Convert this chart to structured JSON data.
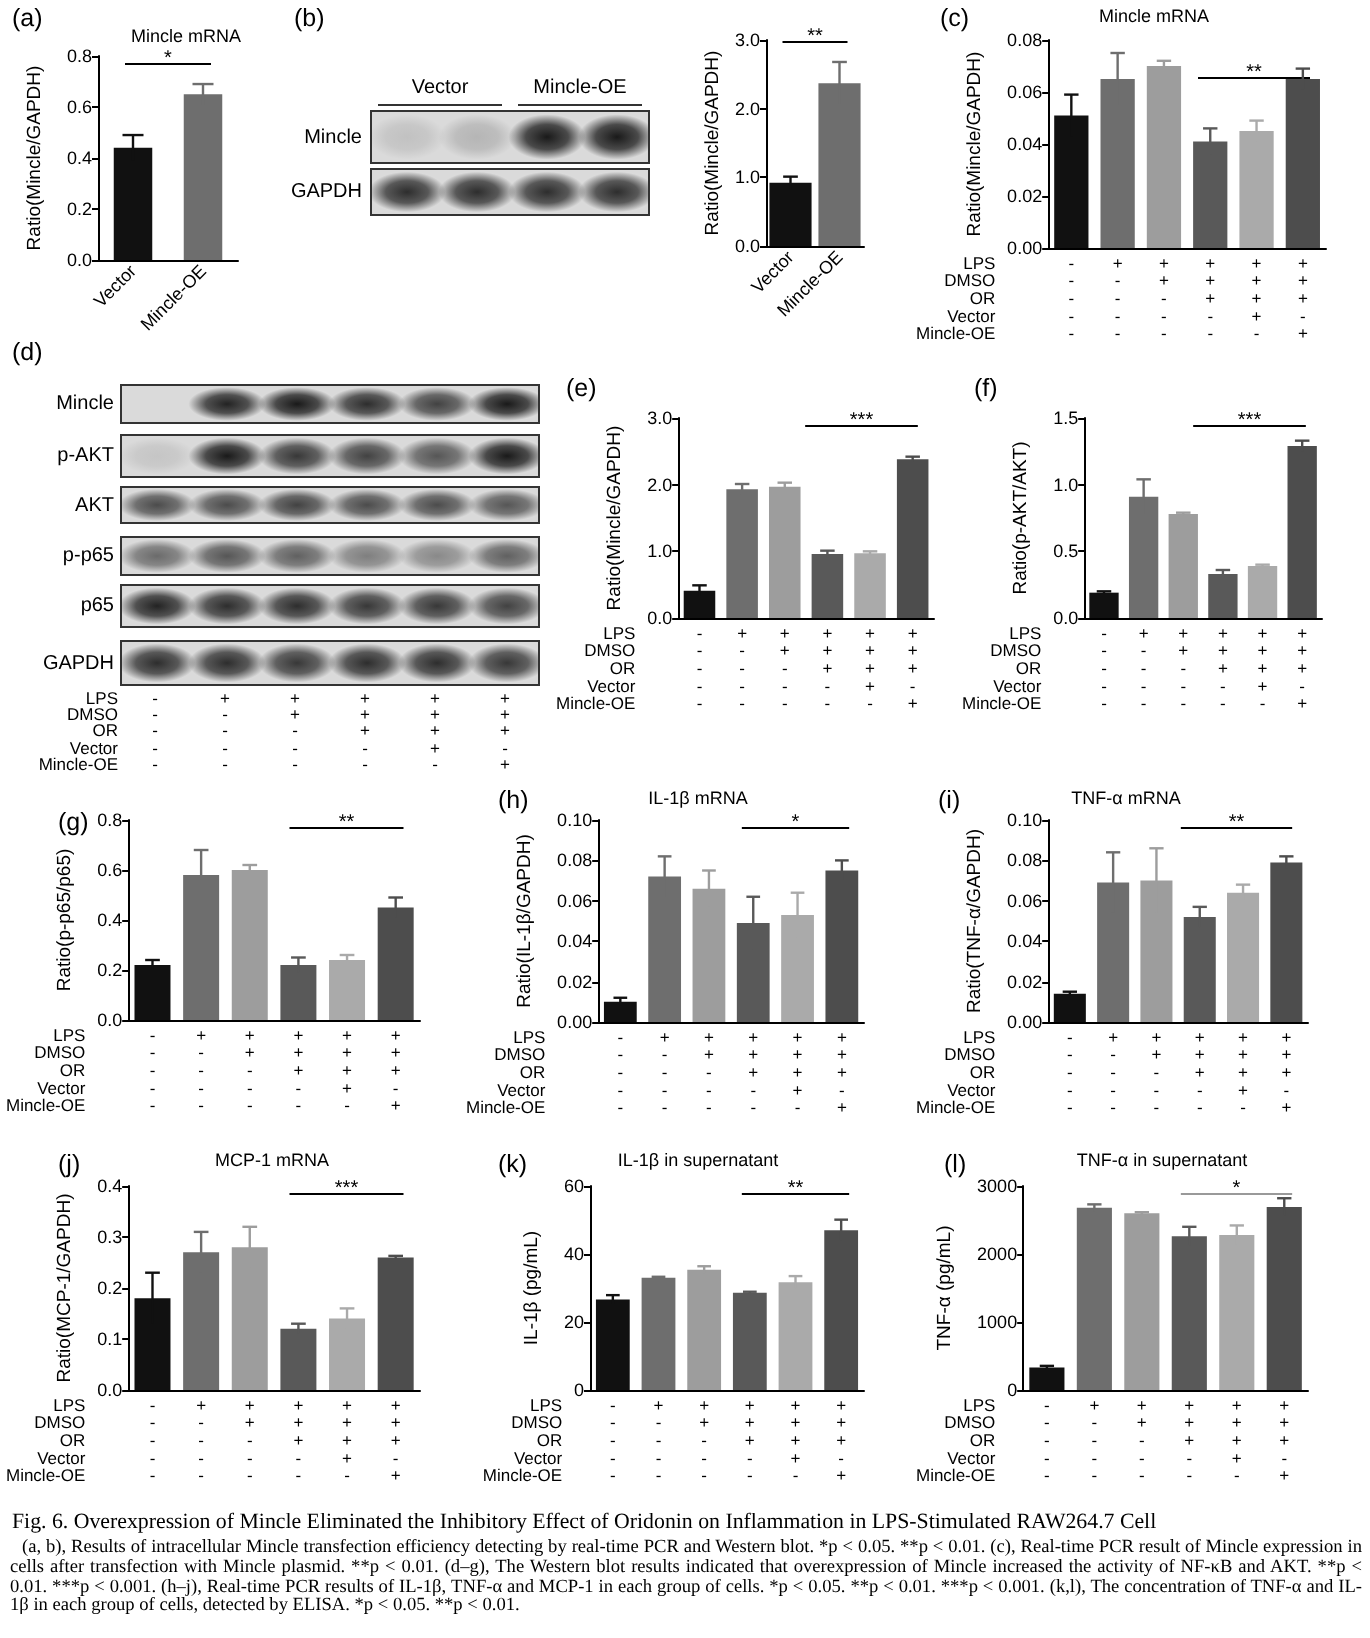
{
  "chart_data": [
    {
      "type": "bar",
      "title": "(a)",
      "subtitle": "Mincle mRNA",
      "ylabel": "Ratio(Mincle/GAPDH)",
      "categories": [
        "Vector",
        "Mincle-OE"
      ],
      "values": [
        0.44,
        0.65
      ],
      "errors": [
        0.05,
        0.04
      ],
      "colors": [
        "#111111",
        "#6e6e6e"
      ],
      "ylim": [
        0,
        0.8
      ],
      "yticks": [
        {
          "value": 0,
          "label": "0.0"
        },
        0.2,
        0.4,
        0.6,
        0.8
      ],
      "annotations": [
        "*"
      ]
    },
    {
      "type": "other",
      "title": "(b)",
      "categories": [
        "Vector",
        "Mincle-OE"
      ],
      "annotations": [
        "Mincle",
        "GAPDH"
      ]
    },
    {
      "type": "bar",
      "ylabel": "Ratio(Mincle/GAPDH)",
      "categories": [
        "Vector",
        "Mincle-OE"
      ],
      "values": [
        0.92,
        2.37
      ],
      "errors": [
        0.09,
        0.31
      ],
      "colors": [
        "#111111",
        "#6e6e6e"
      ],
      "ylim": [
        0,
        3
      ],
      "yticks": [
        {
          "value": 0,
          "label": "0.0"
        },
        {
          "value": 1,
          "label": "1.0"
        },
        {
          "value": 2,
          "label": "2.0"
        },
        {
          "value": 3,
          "label": "3.0"
        }
      ],
      "annotations": [
        "**"
      ]
    },
    {
      "type": "bar",
      "title": "(c)",
      "subtitle": "Mincle mRNA",
      "ylabel": "Ratio(Mincle/GAPDH)",
      "xlabel": "LPS\nDMSO\nOR\nVector\nMincle-OE",
      "categories": [
        "-\n-\n-\n-\n-",
        "+\n-\n-\n-\n-",
        "+\n+\n-\n-\n-",
        "+\n+\n+\n-\n-",
        "+\n+\n+\n+\n-",
        "+\n+\n+\n-\n+"
      ],
      "values": [
        0.051,
        0.065,
        0.07,
        0.041,
        0.045,
        0.065
      ],
      "errors": [
        0.008,
        0.01,
        0.002,
        0.005,
        0.004,
        0.004
      ],
      "colors": [
        "#111111",
        "#6e6e6e",
        "#9d9d9d",
        "#595959",
        "#aaaaaa",
        "#4d4d4d"
      ],
      "ylim": [
        0,
        0.08
      ],
      "yticks": [
        {
          "value": 0,
          "label": "0.00"
        },
        0.02,
        0.04,
        0.06,
        0.08
      ],
      "annotations": [
        "**"
      ]
    },
    {
      "type": "other",
      "title": "(d)",
      "xlabel": "LPS\nDMSO\nOR\nVector\nMincle-OE",
      "categories": [
        "-\n-\n-\n-\n-",
        "+\n-\n-\n-\n-",
        "+\n+\n-\n-\n-",
        "+\n+\n+\n-\n-",
        "+\n+\n+\n+\n-",
        "+\n+\n+\n-\n+"
      ],
      "annotations": [
        "Mincle",
        "p-AKT",
        "AKT",
        "p-p65",
        "p65",
        "GAPDH"
      ]
    },
    {
      "type": "bar",
      "title": "(e)",
      "ylabel": "Ratio(Mincle/GAPDH)",
      "xlabel": "LPS\nDMSO\nOR\nVector\nMincle-OE",
      "categories": [
        "-\n-\n-\n-\n-",
        "+\n-\n-\n-\n-",
        "+\n+\n-\n-\n-",
        "+\n+\n+\n-\n-",
        "+\n+\n+\n+\n-",
        "+\n+\n+\n-\n+"
      ],
      "values": [
        0.41,
        1.93,
        1.97,
        0.96,
        0.97,
        2.38
      ],
      "errors": [
        0.08,
        0.08,
        0.06,
        0.05,
        0.03,
        0.04
      ],
      "colors": [
        "#111111",
        "#6e6e6e",
        "#9d9d9d",
        "#595959",
        "#aaaaaa",
        "#4d4d4d"
      ],
      "ylim": [
        0,
        3
      ],
      "yticks": [
        {
          "value": 0,
          "label": "0.0"
        },
        {
          "value": 1,
          "label": "1.0"
        },
        {
          "value": 2,
          "label": "2.0"
        },
        {
          "value": 3,
          "label": "3.0"
        }
      ],
      "annotations": [
        "***"
      ]
    },
    {
      "type": "bar",
      "title": "(f)",
      "ylabel": "Ratio(p-AKT/AKT)",
      "xlabel": "LPS\nDMSO\nOR\nVector\nMincle-OE",
      "categories": [
        "-\n-\n-\n-\n-",
        "+\n-\n-\n-\n-",
        "+\n+\n-\n-\n-",
        "+\n+\n+\n-\n-",
        "+\n+\n+\n+\n-",
        "+\n+\n+\n-\n+"
      ],
      "values": [
        0.19,
        0.91,
        0.78,
        0.33,
        0.39,
        1.29
      ],
      "errors": [
        0.01,
        0.13,
        0.01,
        0.03,
        0.01,
        0.04
      ],
      "colors": [
        "#111111",
        "#6e6e6e",
        "#9d9d9d",
        "#595959",
        "#aaaaaa",
        "#4d4d4d"
      ],
      "ylim": [
        0,
        1.5
      ],
      "yticks": [
        {
          "value": 0,
          "label": "0.0"
        },
        0.5,
        {
          "value": 1,
          "label": "1.0"
        },
        1.5
      ],
      "annotations": [
        "***"
      ]
    },
    {
      "type": "bar",
      "title": "(g)",
      "ylabel": "Ratio(p-p65/p65)",
      "xlabel": "LPS\nDMSO\nOR\nVector\nMincle-OE",
      "categories": [
        "-\n-\n-\n-\n-",
        "+\n-\n-\n-\n-",
        "+\n+\n-\n-\n-",
        "+\n+\n+\n-\n-",
        "+\n+\n+\n+\n-",
        "+\n+\n+\n-\n+"
      ],
      "values": [
        0.22,
        0.58,
        0.6,
        0.22,
        0.24,
        0.45
      ],
      "errors": [
        0.02,
        0.1,
        0.02,
        0.03,
        0.02,
        0.04
      ],
      "colors": [
        "#111111",
        "#6e6e6e",
        "#9d9d9d",
        "#595959",
        "#aaaaaa",
        "#4d4d4d"
      ],
      "ylim": [
        0,
        0.8
      ],
      "yticks": [
        {
          "value": 0,
          "label": "0.0"
        },
        0.2,
        0.4,
        0.6,
        0.8
      ],
      "annotations": [
        "**"
      ]
    },
    {
      "type": "bar",
      "title": "(h)",
      "subtitle": "IL-1β mRNA",
      "ylabel": "Ratio(IL-1β/GAPDH)",
      "xlabel": "LPS\nDMSO\nOR\nVector\nMincle-OE",
      "categories": [
        "-\n-\n-\n-\n-",
        "+\n-\n-\n-\n-",
        "+\n+\n-\n-\n-",
        "+\n+\n+\n-\n-",
        "+\n+\n+\n+\n-",
        "+\n+\n+\n-\n+"
      ],
      "values": [
        0.01,
        0.072,
        0.066,
        0.049,
        0.053,
        0.075
      ],
      "errors": [
        0.002,
        0.01,
        0.009,
        0.013,
        0.011,
        0.005
      ],
      "colors": [
        "#111111",
        "#6e6e6e",
        "#9d9d9d",
        "#595959",
        "#aaaaaa",
        "#4d4d4d"
      ],
      "ylim": [
        0,
        0.1
      ],
      "yticks": [
        {
          "value": 0,
          "label": "0.00"
        },
        0.02,
        0.04,
        0.06,
        0.08,
        {
          "value": 0.1,
          "label": "0.10"
        }
      ],
      "annotations": [
        "*"
      ]
    },
    {
      "type": "bar",
      "title": "(i)",
      "subtitle": "TNF-α mRNA",
      "ylabel": "Ratio(TNF-α/GAPDH)",
      "xlabel": "LPS\nDMSO\nOR\nVector\nMincle-OE",
      "categories": [
        "-\n-\n-\n-\n-",
        "+\n-\n-\n-\n-",
        "+\n+\n-\n-\n-",
        "+\n+\n+\n-\n-",
        "+\n+\n+\n+\n-",
        "+\n+\n+\n-\n+"
      ],
      "values": [
        0.014,
        0.069,
        0.07,
        0.052,
        0.064,
        0.079
      ],
      "errors": [
        0.001,
        0.015,
        0.016,
        0.005,
        0.004,
        0.003
      ],
      "colors": [
        "#111111",
        "#6e6e6e",
        "#9d9d9d",
        "#595959",
        "#aaaaaa",
        "#4d4d4d"
      ],
      "ylim": [
        0,
        0.1
      ],
      "yticks": [
        {
          "value": 0,
          "label": "0.00"
        },
        0.02,
        0.04,
        0.06,
        0.08,
        {
          "value": 0.1,
          "label": "0.10"
        }
      ],
      "annotations": [
        "**"
      ]
    },
    {
      "type": "bar",
      "title": "(j)",
      "subtitle": "MCP-1 mRNA",
      "ylabel": "Ratio(MCP-1/GAPDH)",
      "xlabel": "LPS\nDMSO\nOR\nVector\nMincle-OE",
      "categories": [
        "-\n-\n-\n-\n-",
        "+\n-\n-\n-\n-",
        "+\n+\n-\n-\n-",
        "+\n+\n+\n-\n-",
        "+\n+\n+\n+\n-",
        "+\n+\n+\n-\n+"
      ],
      "values": [
        0.18,
        0.27,
        0.28,
        0.12,
        0.14,
        0.26
      ],
      "errors": [
        0.05,
        0.04,
        0.04,
        0.01,
        0.02,
        0.003
      ],
      "colors": [
        "#111111",
        "#6e6e6e",
        "#9d9d9d",
        "#595959",
        "#aaaaaa",
        "#4d4d4d"
      ],
      "ylim": [
        0,
        0.4
      ],
      "yticks": [
        {
          "value": 0,
          "label": "0.0"
        },
        0.1,
        0.2,
        0.3,
        0.4
      ],
      "annotations": [
        "***"
      ]
    },
    {
      "type": "bar",
      "title": "(k)",
      "subtitle": "IL-1β in supernatant",
      "ylabel": "IL-1β (pg/mL)",
      "xlabel": "LPS\nDMSO\nOR\nVector\nMincle-OE",
      "categories": [
        "-\n-\n-\n-\n-",
        "+\n-\n-\n-\n-",
        "+\n+\n-\n-\n-",
        "+\n+\n+\n-\n-",
        "+\n+\n+\n+\n-",
        "+\n+\n+\n-\n+"
      ],
      "values": [
        26.6,
        33.0,
        35.4,
        28.6,
        31.7,
        47.0
      ],
      "errors": [
        1.3,
        0.3,
        1.0,
        0.3,
        1.8,
        3.1
      ],
      "colors": [
        "#111111",
        "#6e6e6e",
        "#9d9d9d",
        "#595959",
        "#aaaaaa",
        "#4d4d4d"
      ],
      "ylim": [
        0,
        60
      ],
      "yticks": [
        0,
        20,
        40,
        60
      ],
      "annotations": [
        "**"
      ]
    },
    {
      "type": "bar",
      "title": "(l)",
      "subtitle": "TNF-α in supernatant",
      "ylabel": "TNF-α (pg/mL)",
      "xlabel": "LPS\nDMSO\nOR\nVector\nMincle-OE",
      "categories": [
        "-\n-\n-\n-\n-",
        "+\n-\n-\n-\n-",
        "+\n+\n-\n-\n-",
        "+\n+\n+\n-\n-",
        "+\n+\n+\n+\n-",
        "+\n+\n+\n-\n+"
      ],
      "values": [
        330,
        2680,
        2600,
        2260,
        2280,
        2690
      ],
      "errors": [
        25,
        50,
        15,
        140,
        140,
        130
      ],
      "colors": [
        "#111111",
        "#6e6e6e",
        "#9d9d9d",
        "#595959",
        "#aaaaaa",
        "#4d4d4d"
      ],
      "ylim": [
        0,
        3000
      ],
      "yticks": [
        0,
        1000,
        2000,
        3000
      ],
      "annotations": [
        "*"
      ]
    },
    {
      "type": "other",
      "title": "Fig. 6. Overexpression of Mincle Eliminated the Inhibitory Effect of Oridonin on Inflammation in LPS-Stimulated RAW264.7 Cell",
      "annotations": [
        "(a, b), Results of intracellular Mincle transfection efficiency detecting by real-time PCR and Western blot. *p < 0.05. **p < 0.01. (c), Real-time PCR result of Mincle expression in cells after transfection with Mincle plasmid. **p < 0.01. (d–g), The Western blot results indicated that overexpression of Mincle increased the activity of NF-κB and AKT. **p < 0.01. ***p < 0.001. (h–j), Real-time PCR results of IL-1β, TNF-α and MCP-1 in each group of cells. *p < 0.05. **p < 0.01. ***p < 0.001. (k,l), The concentration of TNF-α and IL-1β in each group of cells, detected by ELISA. *p < 0.05. **p < 0.01."
      ]
    }
  ]
}
